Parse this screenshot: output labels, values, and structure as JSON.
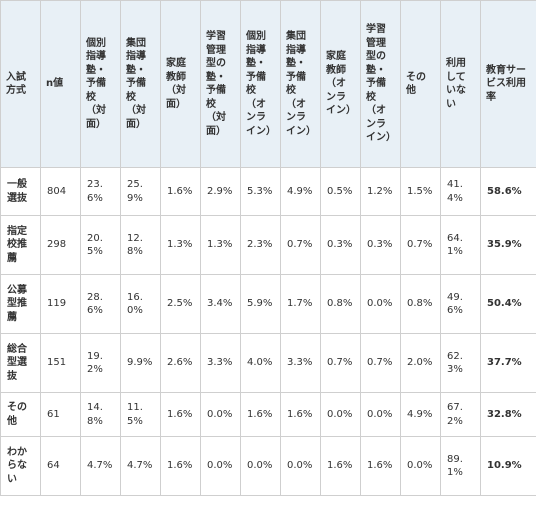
{
  "table": {
    "headers": [
      "入試方式",
      "n値",
      "個別指導塾・予備校（対面）",
      "集団指導塾・予備校（対面）",
      "家庭教師（対面）",
      "学習管理型の塾・予備校（対面）",
      "個別指導塾・予備校（オンライン）",
      "集団指導塾・予備校（オンライン）",
      "家庭教師（オンライン）",
      "学習管理型の塾・予備校（オンライン）",
      "その他",
      "利用していない",
      "教育サービス利用率"
    ],
    "rows": [
      [
        "一般選抜",
        "804",
        "23.6%",
        "25.9%",
        "1.6%",
        "2.9%",
        "5.3%",
        "4.9%",
        "0.5%",
        "1.2%",
        "1.5%",
        "41.4%",
        "58.6%"
      ],
      [
        "指定校推薦",
        "298",
        "20.5%",
        "12.8%",
        "1.3%",
        "1.3%",
        "2.3%",
        "0.7%",
        "0.3%",
        "0.3%",
        "0.7%",
        "64.1%",
        "35.9%"
      ],
      [
        "公募型推薦",
        "119",
        "28.6%",
        "16.0%",
        "2.5%",
        "3.4%",
        "5.9%",
        "1.7%",
        "0.8%",
        "0.0%",
        "0.8%",
        "49.6%",
        "50.4%"
      ],
      [
        "総合型選抜",
        "151",
        "19.2%",
        "9.9%",
        "2.6%",
        "3.3%",
        "4.0%",
        "3.3%",
        "0.7%",
        "0.7%",
        "2.0%",
        "62.3%",
        "37.7%"
      ],
      [
        "その他",
        "61",
        "14.8%",
        "11.5%",
        "1.6%",
        "0.0%",
        "1.6%",
        "1.6%",
        "0.0%",
        "0.0%",
        "4.9%",
        "67.2%",
        "32.8%"
      ],
      [
        "わからない",
        "64",
        "4.7%",
        "4.7%",
        "1.6%",
        "0.0%",
        "0.0%",
        "0.0%",
        "1.6%",
        "1.6%",
        "0.0%",
        "89.1%",
        "10.9%"
      ]
    ]
  }
}
